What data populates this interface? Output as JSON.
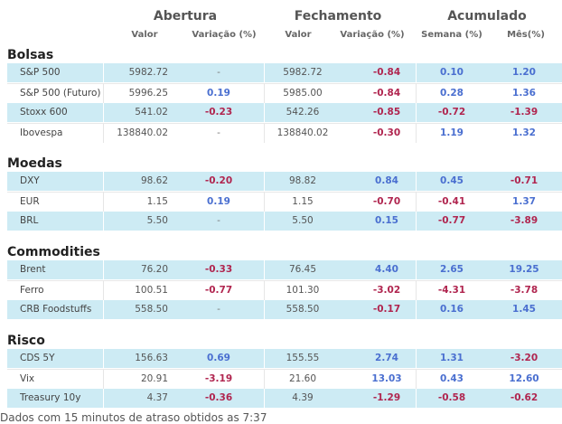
{
  "headers": {
    "abertura": "Abertura",
    "fechamento": "Fechamento",
    "acumulado": "Acumulado",
    "valor1": "Valor",
    "variacao1": "Variação (%)",
    "valor2": "Valor",
    "variacao2": "Variação (%)",
    "semana": "Semana (%)",
    "mes": "Mês(%)"
  },
  "sections": [
    {
      "title": "Bolsas",
      "rows": [
        {
          "name": "S&P 500",
          "open_value": "5982.72",
          "open_var": "-",
          "close_value": "5982.72",
          "close_var": "-0.84",
          "week": "0.10",
          "month": "1.20"
        },
        {
          "name": "S&P 500 (Futuro)",
          "open_value": "5996.25",
          "open_var": "0.19",
          "close_value": "5985.00",
          "close_var": "-0.84",
          "week": "0.28",
          "month": "1.36"
        },
        {
          "name": "Stoxx 600",
          "open_value": "541.02",
          "open_var": "-0.23",
          "close_value": "542.26",
          "close_var": "-0.85",
          "week": "-0.72",
          "month": "-1.39"
        },
        {
          "name": "Ibovespa",
          "open_value": "138840.02",
          "open_var": "-",
          "close_value": "138840.02",
          "close_var": "-0.30",
          "week": "1.19",
          "month": "1.32"
        }
      ]
    },
    {
      "title": "Moedas",
      "rows": [
        {
          "name": "DXY",
          "open_value": "98.62",
          "open_var": "-0.20",
          "close_value": "98.82",
          "close_var": "0.84",
          "week": "0.45",
          "month": "-0.71"
        },
        {
          "name": "EUR",
          "open_value": "1.15",
          "open_var": "0.19",
          "close_value": "1.15",
          "close_var": "-0.70",
          "week": "-0.41",
          "month": "1.37"
        },
        {
          "name": "BRL",
          "open_value": "5.50",
          "open_var": "-",
          "close_value": "5.50",
          "close_var": "0.15",
          "week": "-0.77",
          "month": "-3.89"
        }
      ]
    },
    {
      "title": "Commodities",
      "rows": [
        {
          "name": "Brent",
          "open_value": "76.20",
          "open_var": "-0.33",
          "close_value": "76.45",
          "close_var": "4.40",
          "week": "2.65",
          "month": "19.25"
        },
        {
          "name": "Ferro",
          "open_value": "100.51",
          "open_var": "-0.77",
          "close_value": "101.30",
          "close_var": "-3.02",
          "week": "-4.31",
          "month": "-3.78"
        },
        {
          "name": "CRB Foodstuffs",
          "open_value": "558.50",
          "open_var": "-",
          "close_value": "558.50",
          "close_var": "-0.17",
          "week": "0.16",
          "month": "1.45"
        }
      ]
    },
    {
      "title": "Risco",
      "rows": [
        {
          "name": "CDS 5Y",
          "open_value": "156.63",
          "open_var": "0.69",
          "close_value": "155.55",
          "close_var": "2.74",
          "week": "1.31",
          "month": "-3.20"
        },
        {
          "name": "Vix",
          "open_value": "20.91",
          "open_var": "-3.19",
          "close_value": "21.60",
          "close_var": "13.03",
          "week": "0.43",
          "month": "12.60"
        },
        {
          "name": "Treasury 10y",
          "open_value": "4.37",
          "open_var": "-0.36",
          "close_value": "4.39",
          "close_var": "-1.29",
          "week": "-0.58",
          "month": "-0.62"
        }
      ]
    }
  ],
  "footer": "Dados com 15 minutos de atraso obtidos as 7:37",
  "colors": {
    "positive": "#4a6fd0",
    "negative": "#b0254f",
    "stripe": "#cdebf4"
  }
}
